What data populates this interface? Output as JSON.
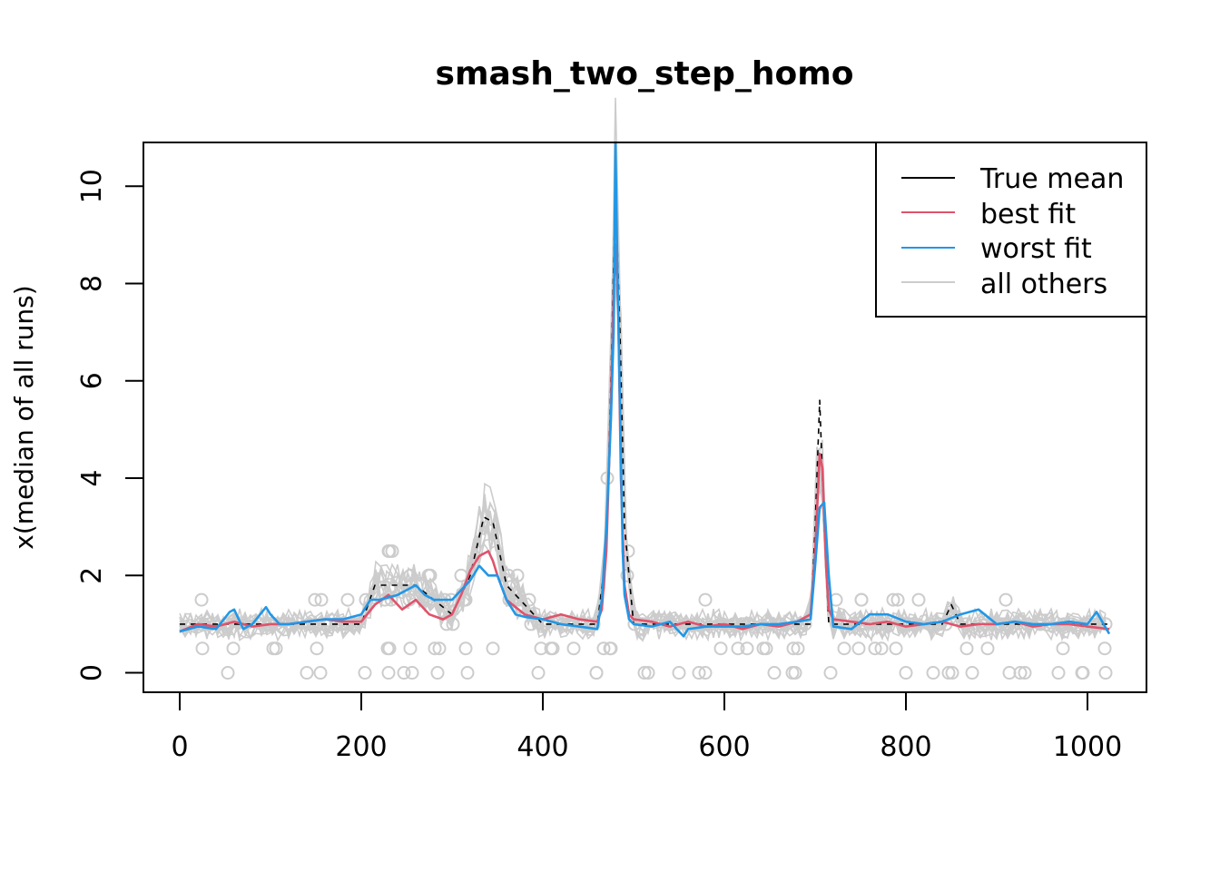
{
  "chart_data": {
    "type": "line",
    "title": "smash_two_step_homo",
    "xlabel": "",
    "ylabel": "x(median of all runs)",
    "xlim": [
      -40,
      1065
    ],
    "ylim": [
      -0.4,
      10.9
    ],
    "x_ticks": [
      0,
      200,
      400,
      600,
      800,
      1000
    ],
    "y_ticks": [
      0,
      2,
      4,
      6,
      8,
      10
    ],
    "legend_position": "top-right",
    "legend": [
      {
        "label": "True mean",
        "color": "#000000"
      },
      {
        "label": "best fit",
        "color": "#DF536B"
      },
      {
        "label": "worst fit",
        "color": "#2297E6"
      },
      {
        "label": "all others",
        "color": "#CCCCCC"
      }
    ],
    "series": [
      {
        "name": "True mean",
        "color": "#000000",
        "dashed": true,
        "x": [
          0,
          100,
          200,
          215,
          260,
          300,
          320,
          335,
          345,
          360,
          400,
          460,
          470,
          475,
          480,
          485,
          490,
          500,
          600,
          695,
          700,
          705,
          710,
          715,
          800,
          840,
          850,
          860,
          1024
        ],
        "y": [
          1,
          1,
          1,
          1.8,
          1.8,
          1.2,
          2,
          3.2,
          3.1,
          1.8,
          1,
          1,
          2.5,
          6,
          10,
          7,
          3,
          1,
          1,
          1,
          3,
          5.6,
          3,
          1,
          1,
          1,
          1.4,
          1,
          1
        ]
      },
      {
        "name": "best fit",
        "color": "#DF536B",
        "x": [
          0,
          20,
          40,
          60,
          80,
          100,
          120,
          140,
          160,
          180,
          200,
          215,
          230,
          245,
          260,
          275,
          290,
          300,
          310,
          320,
          330,
          340,
          345,
          350,
          360,
          380,
          400,
          420,
          440,
          460,
          465,
          470,
          475,
          478,
          480,
          483,
          486,
          490,
          495,
          500,
          520,
          540,
          560,
          580,
          600,
          620,
          640,
          660,
          680,
          695,
          700,
          705,
          708,
          712,
          715,
          720,
          740,
          760,
          780,
          800,
          820,
          840,
          860,
          880,
          900,
          920,
          940,
          960,
          980,
          1000,
          1024
        ],
        "y": [
          0.85,
          1.0,
          0.95,
          1.05,
          0.95,
          1.0,
          1.0,
          1.05,
          1.1,
          1.05,
          1.05,
          1.4,
          1.6,
          1.3,
          1.5,
          1.2,
          1.1,
          1.2,
          1.6,
          2.1,
          2.4,
          2.5,
          2.3,
          2.0,
          1.5,
          1.2,
          1.1,
          1.2,
          1.1,
          1.05,
          1.3,
          2.5,
          5.5,
          7.8,
          8.8,
          7.5,
          4,
          1.8,
          1.2,
          1.1,
          1.05,
          0.95,
          1.05,
          0.95,
          1.0,
          0.9,
          1.0,
          0.95,
          1.05,
          1.2,
          2.5,
          4.5,
          4.2,
          2.2,
          1.3,
          1.1,
          1.05,
          1.0,
          1.05,
          0.95,
          1.0,
          1.05,
          0.95,
          1.0,
          1.0,
          1.05,
          0.95,
          1.0,
          1.0,
          0.95,
          0.9
        ]
      },
      {
        "name": "worst fit",
        "color": "#2297E6",
        "x": [
          0,
          20,
          40,
          55,
          60,
          70,
          80,
          95,
          100,
          110,
          120,
          140,
          160,
          180,
          200,
          210,
          220,
          240,
          250,
          260,
          270,
          280,
          290,
          300,
          310,
          320,
          330,
          340,
          350,
          360,
          370,
          380,
          400,
          420,
          440,
          460,
          465,
          470,
          475,
          478,
          480,
          482,
          485,
          488,
          490,
          495,
          500,
          520,
          540,
          555,
          560,
          580,
          600,
          620,
          640,
          660,
          680,
          695,
          700,
          705,
          710,
          715,
          720,
          740,
          760,
          780,
          800,
          820,
          840,
          860,
          880,
          900,
          920,
          940,
          960,
          980,
          1000,
          1010,
          1024
        ],
        "y": [
          0.85,
          0.95,
          0.9,
          1.25,
          1.3,
          0.9,
          1.0,
          1.35,
          1.2,
          1.0,
          1.0,
          1.05,
          1.1,
          1.1,
          1.2,
          1.5,
          1.5,
          1.6,
          1.7,
          1.8,
          1.6,
          1.5,
          1.5,
          1.5,
          1.7,
          1.9,
          2.2,
          2.0,
          2.0,
          1.5,
          1.2,
          1.15,
          1.1,
          1.0,
          0.95,
          0.9,
          1.5,
          3.0,
          5.2,
          7.0,
          10.9,
          8.5,
          5.5,
          2.5,
          1.6,
          1.1,
          1.0,
          0.95,
          1.05,
          0.75,
          0.9,
          0.95,
          0.95,
          0.95,
          1.0,
          1.0,
          1.05,
          1.1,
          2.2,
          3.4,
          3.5,
          2.0,
          0.95,
          0.9,
          1.2,
          1.2,
          1.05,
          1.0,
          1.05,
          1.2,
          1.3,
          1.0,
          1.05,
          1.0,
          1.0,
          1.05,
          1.0,
          1.25,
          0.8
        ]
      }
    ],
    "gray_band_note": "all others"
  }
}
